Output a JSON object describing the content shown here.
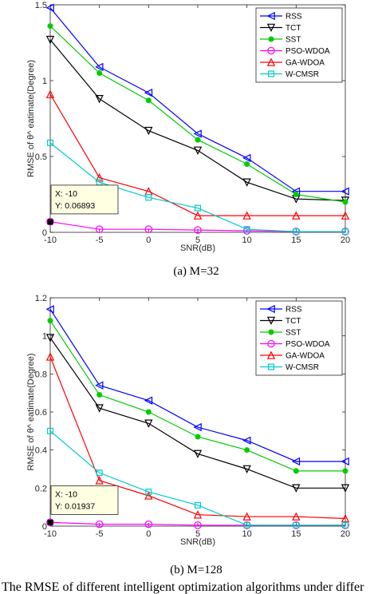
{
  "chart_data": [
    {
      "type": "line",
      "caption": "(a)  M=32",
      "xlabel": "SNR(dB)",
      "ylabel": "RMSE of θ^ eatimate(Degree)",
      "x": [
        -10,
        -5,
        0,
        5,
        10,
        15,
        20
      ],
      "xticks": [
        "-10",
        "-5",
        "0",
        "5",
        "10",
        "15",
        "20"
      ],
      "xlim": [
        -10,
        20
      ],
      "ylim": [
        0,
        1.5
      ],
      "yticks": [
        0,
        0.5,
        1,
        1.5
      ],
      "yticklabels": [
        "0",
        "0.5",
        "1",
        "1.5"
      ],
      "legend": "top-right",
      "series": [
        {
          "name": "RSS",
          "color": "#0000ff",
          "marker": "triangle-left",
          "values": [
            1.48,
            1.09,
            0.92,
            0.65,
            0.49,
            0.27,
            0.27
          ]
        },
        {
          "name": "TCT",
          "color": "#000000",
          "marker": "triangle-down",
          "values": [
            1.27,
            0.88,
            0.67,
            0.54,
            0.33,
            0.22,
            0.21
          ]
        },
        {
          "name": "SST",
          "color": "#00cc00",
          "marker": "star",
          "values": [
            1.36,
            1.05,
            0.87,
            0.61,
            0.45,
            0.25,
            0.2
          ]
        },
        {
          "name": "PSO-WDOA",
          "color": "#ff00ff",
          "marker": "circle",
          "values": [
            0.07,
            0.02,
            0.02,
            0.015,
            0.01,
            0.005,
            0.005
          ]
        },
        {
          "name": "GA-WDOA",
          "color": "#ff0000",
          "marker": "triangle-up",
          "values": [
            0.91,
            0.36,
            0.27,
            0.11,
            0.11,
            0.11,
            0.11
          ]
        },
        {
          "name": "W-CMSR",
          "color": "#00cccc",
          "marker": "square",
          "values": [
            0.59,
            0.33,
            0.23,
            0.16,
            0.02,
            0.005,
            0.005
          ]
        }
      ],
      "datatip": {
        "x": -10,
        "y": 0.06893,
        "line1": "X: -10",
        "line2": "Y: 0.06893"
      }
    },
    {
      "type": "line",
      "caption": "(b)  M=128",
      "xlabel": "SNR(dB)",
      "ylabel": "RMSE of θ^ eatimate(Degree)",
      "x": [
        -10,
        -5,
        0,
        5,
        10,
        15,
        20
      ],
      "xticks": [
        "-10",
        "-5",
        "0",
        "5",
        "10",
        "15",
        "20"
      ],
      "xlim": [
        -10,
        20
      ],
      "ylim": [
        0,
        1.2
      ],
      "yticks": [
        0,
        0.2,
        0.4,
        0.6,
        0.8,
        1,
        1.2
      ],
      "yticklabels": [
        "0",
        "0.2",
        "0.4",
        "0.6",
        "0.8",
        "1",
        "1.2"
      ],
      "legend": "top-right",
      "series": [
        {
          "name": "RSS",
          "color": "#0000ff",
          "marker": "triangle-left",
          "values": [
            1.14,
            0.74,
            0.66,
            0.52,
            0.45,
            0.34,
            0.34
          ]
        },
        {
          "name": "TCT",
          "color": "#000000",
          "marker": "triangle-down",
          "values": [
            0.99,
            0.62,
            0.54,
            0.38,
            0.3,
            0.2,
            0.2
          ]
        },
        {
          "name": "SST",
          "color": "#00cc00",
          "marker": "star",
          "values": [
            1.08,
            0.69,
            0.6,
            0.47,
            0.4,
            0.29,
            0.29
          ]
        },
        {
          "name": "PSO-WDOA",
          "color": "#ff00ff",
          "marker": "circle",
          "values": [
            0.02,
            0.01,
            0.01,
            0.005,
            0.005,
            0.005,
            0.005
          ]
        },
        {
          "name": "GA-WDOA",
          "color": "#ff0000",
          "marker": "triangle-up",
          "values": [
            0.89,
            0.24,
            0.16,
            0.06,
            0.05,
            0.05,
            0.04
          ]
        },
        {
          "name": "W-CMSR",
          "color": "#00cccc",
          "marker": "square",
          "values": [
            0.5,
            0.28,
            0.18,
            0.11,
            0.005,
            0.005,
            0.005
          ]
        }
      ],
      "datatip": {
        "x": -10,
        "y": 0.01937,
        "line1": "X: -10",
        "line2": "Y: 0.01937"
      }
    }
  ],
  "footer_text": "The RMSE of different intelligent optimization algorithms under differ"
}
